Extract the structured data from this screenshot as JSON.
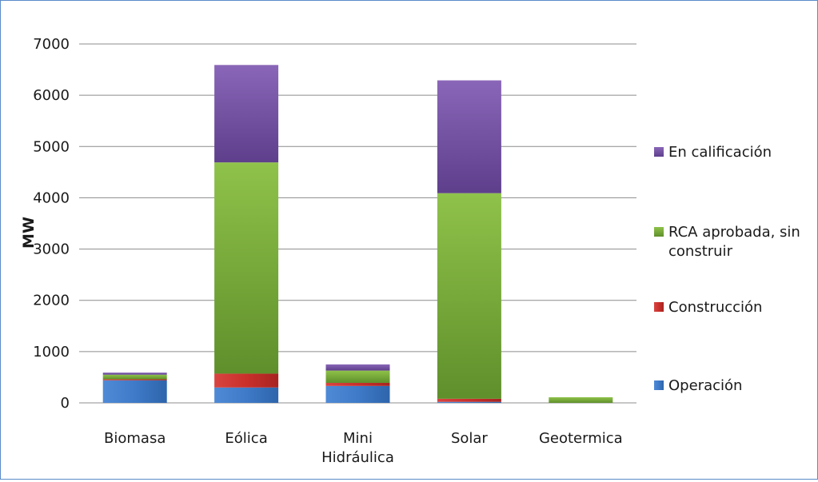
{
  "chart_data": {
    "type": "bar",
    "stacked": true,
    "title": "",
    "xlabel": "",
    "ylabel": "MW",
    "ylim": [
      0,
      7000
    ],
    "yticks": [
      0,
      1000,
      2000,
      3000,
      4000,
      5000,
      6000,
      7000
    ],
    "grid": true,
    "legend_position": "right",
    "categories": [
      "Biomasa",
      "Eólica",
      "Mini Hidráulica",
      "Solar",
      "Geotermica"
    ],
    "series": [
      {
        "name": "Operación",
        "color": "#3e7ac8",
        "values": [
          440,
          300,
          330,
          20,
          0
        ]
      },
      {
        "name": "Construcción",
        "color": "#c9302c",
        "values": [
          20,
          270,
          60,
          60,
          0
        ]
      },
      {
        "name": "RCA aprobada, sin construir",
        "color": "#76a83a",
        "values": [
          90,
          4120,
          240,
          4010,
          110
        ]
      },
      {
        "name": "En calificación",
        "color": "#7b56a8",
        "values": [
          40,
          1900,
          120,
          2200,
          0
        ]
      }
    ]
  }
}
